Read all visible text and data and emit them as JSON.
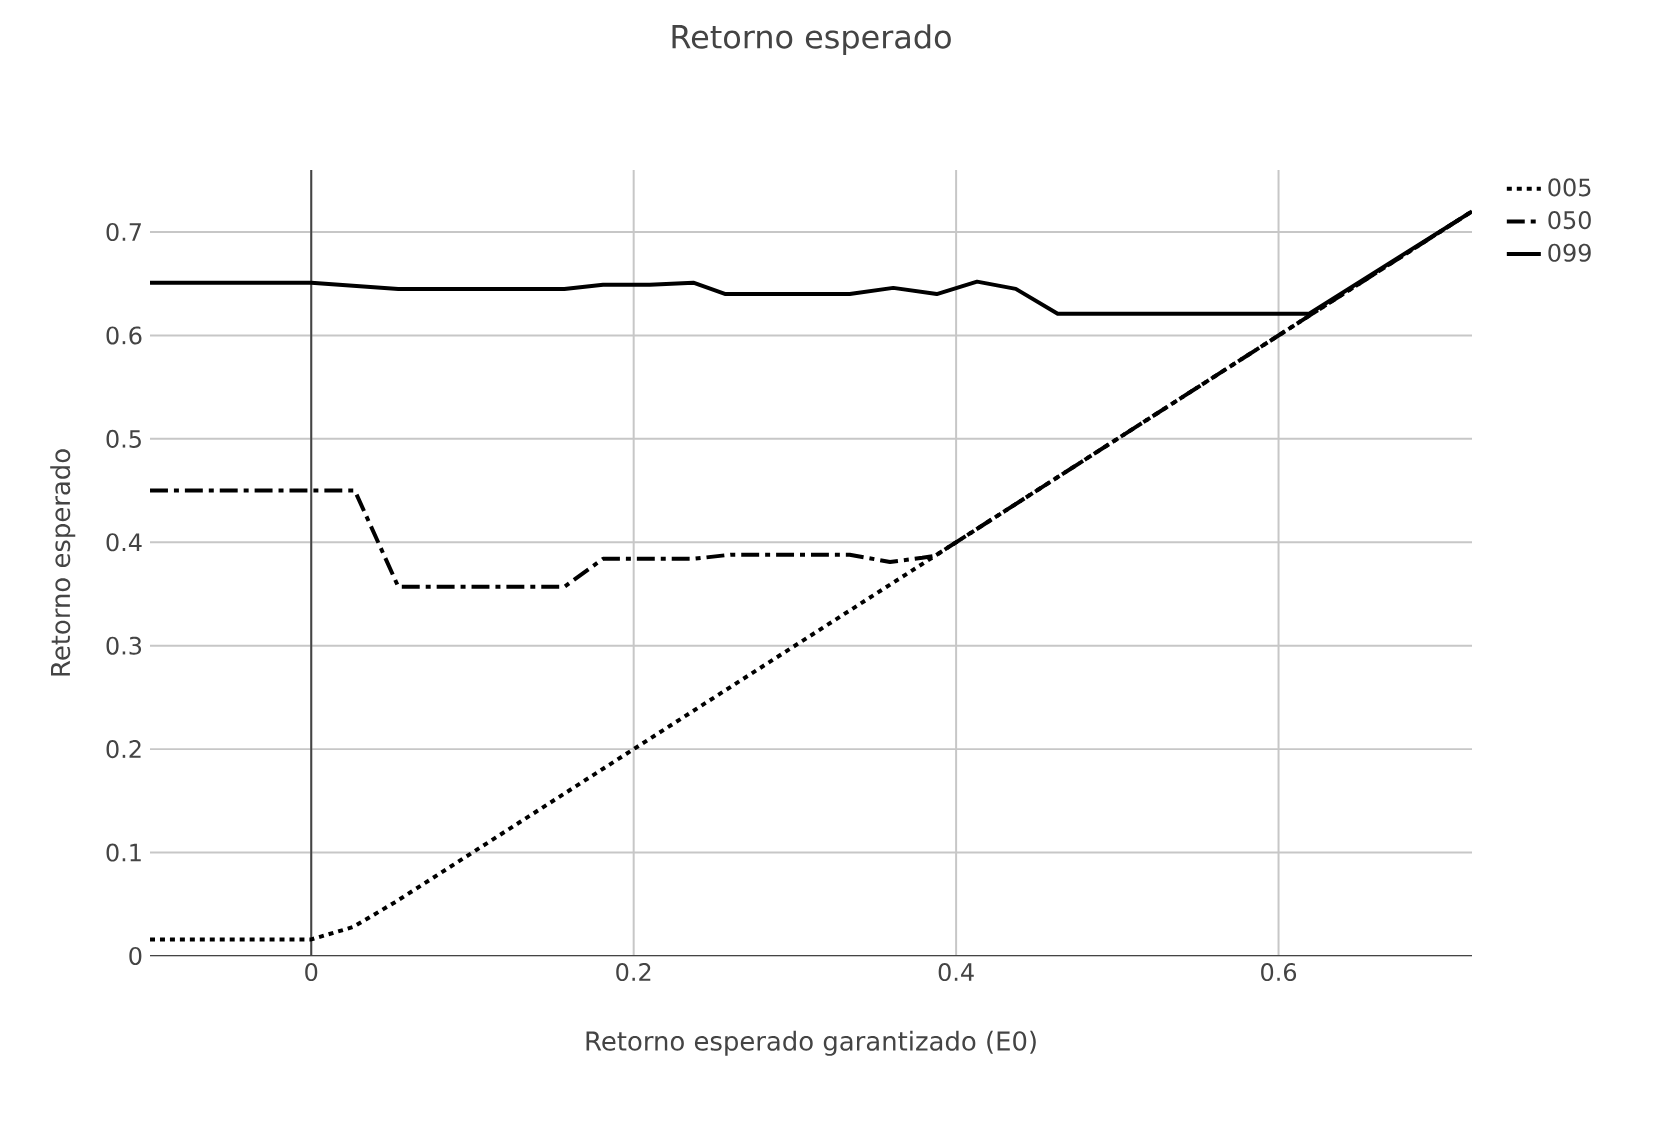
{
  "chart_data": {
    "type": "line",
    "title": "Retorno esperado",
    "xlabel": "Retorno esperado garantizado (E0)",
    "ylabel": "Retorno esperado",
    "xlim": [
      -0.1,
      0.72
    ],
    "ylim": [
      0,
      0.76
    ],
    "xticks": [
      0,
      0.2,
      0.4,
      0.6
    ],
    "yticks": [
      0,
      0.1,
      0.2,
      0.3,
      0.4,
      0.5,
      0.6,
      0.7
    ],
    "grid": true,
    "legend": "top right",
    "marker": "none",
    "ref_lines": [
      {
        "axis": "x",
        "value": 0,
        "color": "#444444"
      }
    ],
    "series": [
      {
        "name": "005",
        "color": "#000000",
        "line_style": "dotted",
        "x": [
          -0.1,
          0,
          0.026,
          0.052,
          0.72
        ],
        "values": [
          0.016,
          0.016,
          0.028,
          0.052,
          0.72
        ]
      },
      {
        "name": "050",
        "color": "#000000",
        "line_style": "dashdot",
        "x": [
          -0.1,
          0.027,
          0.054,
          0.157,
          0.181,
          0.237,
          0.26,
          0.334,
          0.359,
          0.379,
          0.387,
          0.72
        ],
        "values": [
          0.45,
          0.45,
          0.357,
          0.357,
          0.384,
          0.384,
          0.388,
          0.388,
          0.381,
          0.385,
          0.387,
          0.72
        ]
      },
      {
        "name": "099",
        "color": "#000000",
        "line_style": "solid",
        "x": [
          -0.1,
          0,
          0.054,
          0.157,
          0.181,
          0.21,
          0.237,
          0.257,
          0.334,
          0.361,
          0.388,
          0.413,
          0.437,
          0.463,
          0.619,
          0.72
        ],
        "values": [
          0.651,
          0.651,
          0.645,
          0.645,
          0.649,
          0.649,
          0.651,
          0.64,
          0.64,
          0.646,
          0.64,
          0.652,
          0.645,
          0.621,
          0.621,
          0.72
        ]
      }
    ]
  }
}
